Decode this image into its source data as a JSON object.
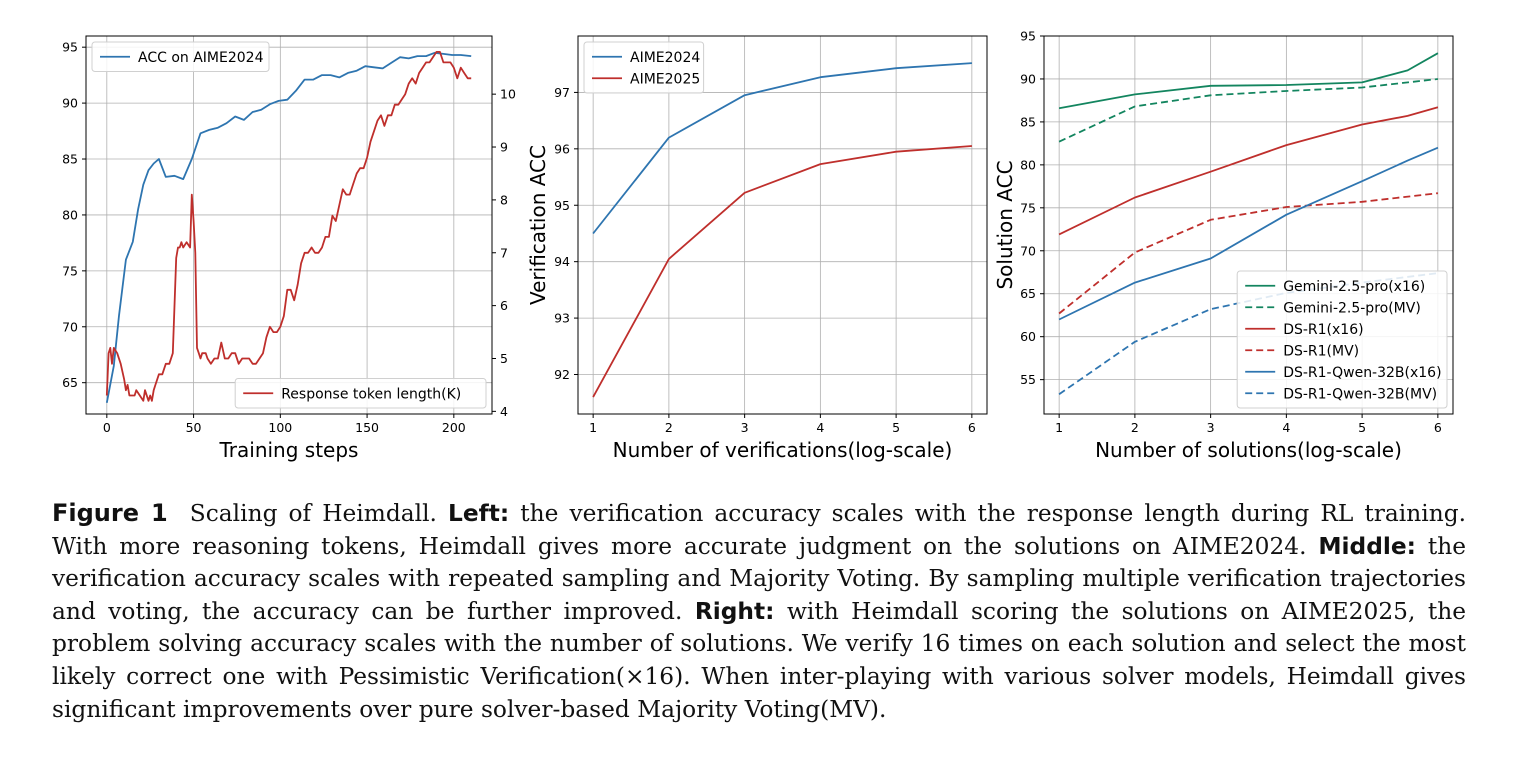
{
  "colors": {
    "blue": "#2e75b0",
    "red": "#bf2f2c",
    "green": "#13855f",
    "grid": "#b0b0b0",
    "axis": "#000000"
  },
  "chart_data": [
    {
      "type": "line",
      "xlabel": "Training steps",
      "xlim": [
        -12,
        222
      ],
      "xticks": [
        0,
        50,
        100,
        150,
        200
      ],
      "ylim": [
        62.2,
        96.0
      ],
      "yticks": [
        65,
        70,
        75,
        80,
        85,
        90,
        95
      ],
      "y2lim": [
        3.95,
        11.1
      ],
      "y2ticks": [
        4,
        5,
        6,
        7,
        8,
        9,
        10
      ],
      "grid": true,
      "legend": {
        "location": "upper-left",
        "entries": [
          "ACC on AIME2024"
        ]
      },
      "legend2": {
        "location": "lower-right",
        "entries": [
          "Response token length(K)"
        ]
      },
      "series": [
        {
          "name": "ACC on AIME2024",
          "axis": "left",
          "color": "blue",
          "dash": "solid",
          "x": [
            0,
            4,
            7,
            11,
            15,
            18,
            21,
            24,
            27,
            30,
            34,
            39,
            44,
            49,
            54,
            59,
            64,
            69,
            74,
            79,
            84,
            89,
            94,
            99,
            104,
            109,
            114,
            119,
            124,
            129,
            134,
            139,
            144,
            149,
            154,
            159,
            164,
            169,
            174,
            179,
            184,
            189,
            194,
            199,
            204,
            210
          ],
          "y": [
            63.2,
            66.5,
            71.0,
            76.0,
            77.6,
            80.5,
            82.7,
            84.0,
            84.6,
            85.0,
            83.4,
            83.5,
            83.2,
            85.0,
            87.3,
            87.6,
            87.8,
            88.2,
            88.8,
            88.5,
            89.2,
            89.4,
            89.9,
            90.2,
            90.3,
            91.1,
            92.1,
            92.1,
            92.5,
            92.5,
            92.3,
            92.7,
            92.9,
            93.3,
            93.2,
            93.1,
            93.6,
            94.1,
            94.0,
            94.2,
            94.2,
            94.5,
            94.4,
            94.3,
            94.3,
            94.2
          ]
        },
        {
          "name": "Response token length(K)",
          "axis": "right",
          "color": "red",
          "dash": "solid",
          "x": [
            0,
            1,
            2,
            3,
            4,
            6,
            8,
            10,
            11,
            12,
            13,
            14,
            16,
            17,
            19,
            21,
            22,
            24,
            25,
            26,
            27,
            28,
            30,
            32,
            34,
            36,
            38,
            40,
            41,
            42,
            43,
            44,
            46,
            48,
            49,
            50,
            51,
            52,
            53,
            54,
            55,
            57,
            58,
            60,
            62,
            64,
            66,
            68,
            70,
            72,
            74,
            76,
            78,
            80,
            82,
            84,
            86,
            88,
            90,
            92,
            94,
            96,
            98,
            100,
            102,
            104,
            106,
            108,
            110,
            112,
            114,
            116,
            118,
            120,
            122,
            124,
            126,
            128,
            130,
            132,
            134,
            136,
            138,
            140,
            142,
            144,
            146,
            148,
            150,
            152,
            154,
            156,
            158,
            160,
            162,
            164,
            166,
            168,
            170,
            172,
            174,
            176,
            178,
            180,
            182,
            184,
            186,
            188,
            190,
            192,
            194,
            196,
            198,
            200,
            202,
            204,
            206,
            208,
            210
          ],
          "y": [
            4.3,
            5.1,
            5.2,
            4.9,
            5.2,
            5.1,
            4.9,
            4.6,
            4.4,
            4.5,
            4.3,
            4.3,
            4.3,
            4.4,
            4.3,
            4.2,
            4.4,
            4.2,
            4.3,
            4.2,
            4.4,
            4.5,
            4.7,
            4.7,
            4.9,
            4.9,
            5.1,
            6.9,
            7.1,
            7.1,
            7.2,
            7.1,
            7.2,
            7.1,
            8.1,
            7.6,
            7.0,
            5.2,
            5.1,
            5.0,
            5.1,
            5.1,
            5.0,
            4.9,
            5.0,
            5.0,
            5.3,
            5.0,
            5.0,
            5.1,
            5.1,
            4.9,
            5.0,
            5.0,
            5.0,
            4.9,
            4.9,
            5.0,
            5.1,
            5.4,
            5.6,
            5.5,
            5.5,
            5.6,
            5.8,
            6.3,
            6.3,
            6.1,
            6.4,
            6.8,
            7.0,
            7.0,
            7.1,
            7.0,
            7.0,
            7.1,
            7.3,
            7.3,
            7.7,
            7.6,
            7.9,
            8.2,
            8.1,
            8.1,
            8.3,
            8.5,
            8.6,
            8.6,
            8.8,
            9.1,
            9.3,
            9.5,
            9.6,
            9.4,
            9.6,
            9.6,
            9.8,
            9.8,
            9.9,
            10.0,
            10.2,
            10.3,
            10.2,
            10.4,
            10.5,
            10.6,
            10.6,
            10.7,
            10.8,
            10.8,
            10.6,
            10.6,
            10.6,
            10.5,
            10.3,
            10.5,
            10.4,
            10.3,
            10.3
          ]
        }
      ]
    },
    {
      "type": "line",
      "xlabel": "Number of verifications(log-scale)",
      "ylabel": "Verification ACC",
      "xlim": [
        0.8,
        6.2
      ],
      "xticks": [
        1,
        2,
        3,
        4,
        5,
        6
      ],
      "ylim": [
        91.3,
        98.0
      ],
      "yticks": [
        92,
        93,
        94,
        95,
        96,
        97
      ],
      "grid": true,
      "legend": {
        "location": "upper-left",
        "entries": [
          "AIME2024",
          "AIME2025"
        ]
      },
      "series": [
        {
          "name": "AIME2024",
          "color": "blue",
          "dash": "solid",
          "x": [
            1,
            2,
            3,
            4,
            5,
            6
          ],
          "y": [
            94.5,
            96.2,
            96.95,
            97.27,
            97.43,
            97.52
          ]
        },
        {
          "name": "AIME2025",
          "color": "red",
          "dash": "solid",
          "x": [
            1,
            2,
            3,
            4,
            5,
            6
          ],
          "y": [
            91.6,
            94.05,
            95.22,
            95.73,
            95.95,
            96.05
          ]
        }
      ]
    },
    {
      "type": "line",
      "xlabel": "Number of solutions(log-scale)",
      "ylabel": "Solution ACC",
      "xlim": [
        0.8,
        6.2
      ],
      "xticks": [
        1,
        2,
        3,
        4,
        5,
        6
      ],
      "ylim": [
        51.0,
        95.0
      ],
      "yticks": [
        55,
        60,
        65,
        70,
        75,
        80,
        85,
        90,
        95
      ],
      "grid": true,
      "legend": {
        "location": "lower-right",
        "entries": [
          "Gemini-2.5-pro(x16)",
          "Gemini-2.5-pro(MV)",
          "DS-R1(x16)",
          "DS-R1(MV)",
          "DS-R1-Qwen-32B(x16)",
          "DS-R1-Qwen-32B(MV)"
        ]
      },
      "series": [
        {
          "name": "Gemini-2.5-pro(x16)",
          "color": "green",
          "dash": "solid",
          "x": [
            1,
            2,
            3,
            4,
            5,
            5.6,
            6
          ],
          "y": [
            86.6,
            88.2,
            89.2,
            89.3,
            89.6,
            91.0,
            93.0
          ]
        },
        {
          "name": "Gemini-2.5-pro(MV)",
          "color": "green",
          "dash": "dashed",
          "x": [
            1,
            2,
            3,
            4,
            5,
            6
          ],
          "y": [
            82.7,
            86.8,
            88.1,
            88.6,
            89.0,
            90.0
          ]
        },
        {
          "name": "DS-R1(x16)",
          "color": "red",
          "dash": "solid",
          "x": [
            1,
            2,
            3,
            4,
            5,
            5.6,
            6
          ],
          "y": [
            71.9,
            76.2,
            79.2,
            82.3,
            84.7,
            85.7,
            86.7
          ]
        },
        {
          "name": "DS-R1(MV)",
          "color": "red",
          "dash": "dashed",
          "x": [
            1,
            2,
            3,
            4,
            5,
            6
          ],
          "y": [
            62.7,
            69.8,
            73.6,
            75.1,
            75.7,
            76.7
          ]
        },
        {
          "name": "DS-R1-Qwen-32B(x16)",
          "color": "blue",
          "dash": "solid",
          "x": [
            1,
            2,
            3,
            4,
            5,
            5.6,
            6
          ],
          "y": [
            62.0,
            66.3,
            69.1,
            74.2,
            78.1,
            80.5,
            82.0
          ]
        },
        {
          "name": "DS-R1-Qwen-32B(MV)",
          "color": "blue",
          "dash": "dashed",
          "x": [
            1,
            2,
            3,
            4,
            5,
            6
          ],
          "y": [
            53.3,
            59.4,
            63.2,
            65.1,
            66.3,
            67.4
          ]
        }
      ]
    }
  ],
  "caption": {
    "fig_label": "Figure 1",
    "intro": "Scaling of Heimdall.",
    "left_label": "Left:",
    "left_text": "the verification accuracy scales with the response length during RL training. With more reasoning tokens, Heimdall gives more accurate judgment on the solutions on AIME2024.",
    "middle_label": "Middle:",
    "middle_text": "the verification accuracy scales with repeated sampling and Majority Voting. By sampling multiple verification trajectories and voting, the accuracy can be further improved.",
    "right_label": "Right:",
    "right_text": "with Heimdall scoring the solutions on AIME2025, the problem solving accuracy scales with the number of solutions. We verify 16 times on each solution and select the most likely correct one with Pessimistic Verification(×16). When inter-playing with various solver models, Heimdall gives significant improvements over pure solver-based Majority Voting(MV)."
  }
}
